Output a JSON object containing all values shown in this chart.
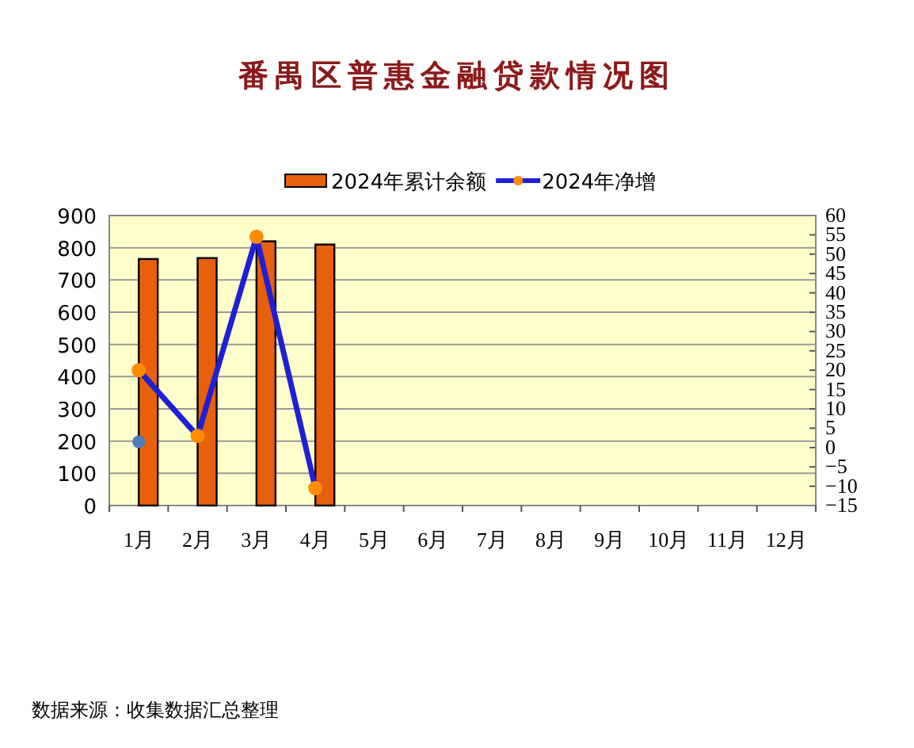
{
  "chart_data": {
    "type": "bar",
    "title": "番禺区普惠金融贷款情况图",
    "categories": [
      "1月",
      "2月",
      "3月",
      "4月",
      "5月",
      "6月",
      "7月",
      "8月",
      "9月",
      "10月",
      "11月",
      "12月"
    ],
    "series": [
      {
        "name": "2024年累计余额",
        "color": "#e8600a",
        "values": [
          765,
          768,
          820,
          810,
          null,
          null,
          null,
          null,
          null,
          null,
          null,
          null
        ]
      },
      {
        "name": "2024年净增",
        "type": "line",
        "axis": "y2",
        "color": "#1f1fd6",
        "colors": [
          "#ff8c00",
          "#ff8c00",
          "#ff8c00",
          "#ff8c00",
          null,
          null,
          null,
          null,
          null,
          null,
          null,
          null
        ],
        "values": [
          20,
          3,
          54.5,
          -10.5,
          null,
          null,
          null,
          null,
          null,
          null,
          null,
          null
        ]
      },
      {
        "type": "scatter",
        "axis": "y2",
        "color": "#4a7ebb",
        "values": [
          1.5,
          null,
          null,
          null,
          null,
          null,
          null,
          null,
          null,
          null,
          null,
          null
        ]
      }
    ],
    "ylim": [
      0,
      900
    ],
    "yticks": [
      0,
      100,
      200,
      300,
      400,
      500,
      600,
      700,
      800,
      900
    ],
    "y2lim": [
      -15,
      60
    ],
    "y2ticks": [
      -15,
      -10,
      -5,
      0,
      5,
      10,
      15,
      20,
      25,
      30,
      35,
      40,
      45,
      50,
      55,
      60
    ],
    "grid": "y",
    "legend": "top",
    "marker": "circle",
    "annotations": [
      "数据来源：收集数据汇总整理"
    ]
  }
}
